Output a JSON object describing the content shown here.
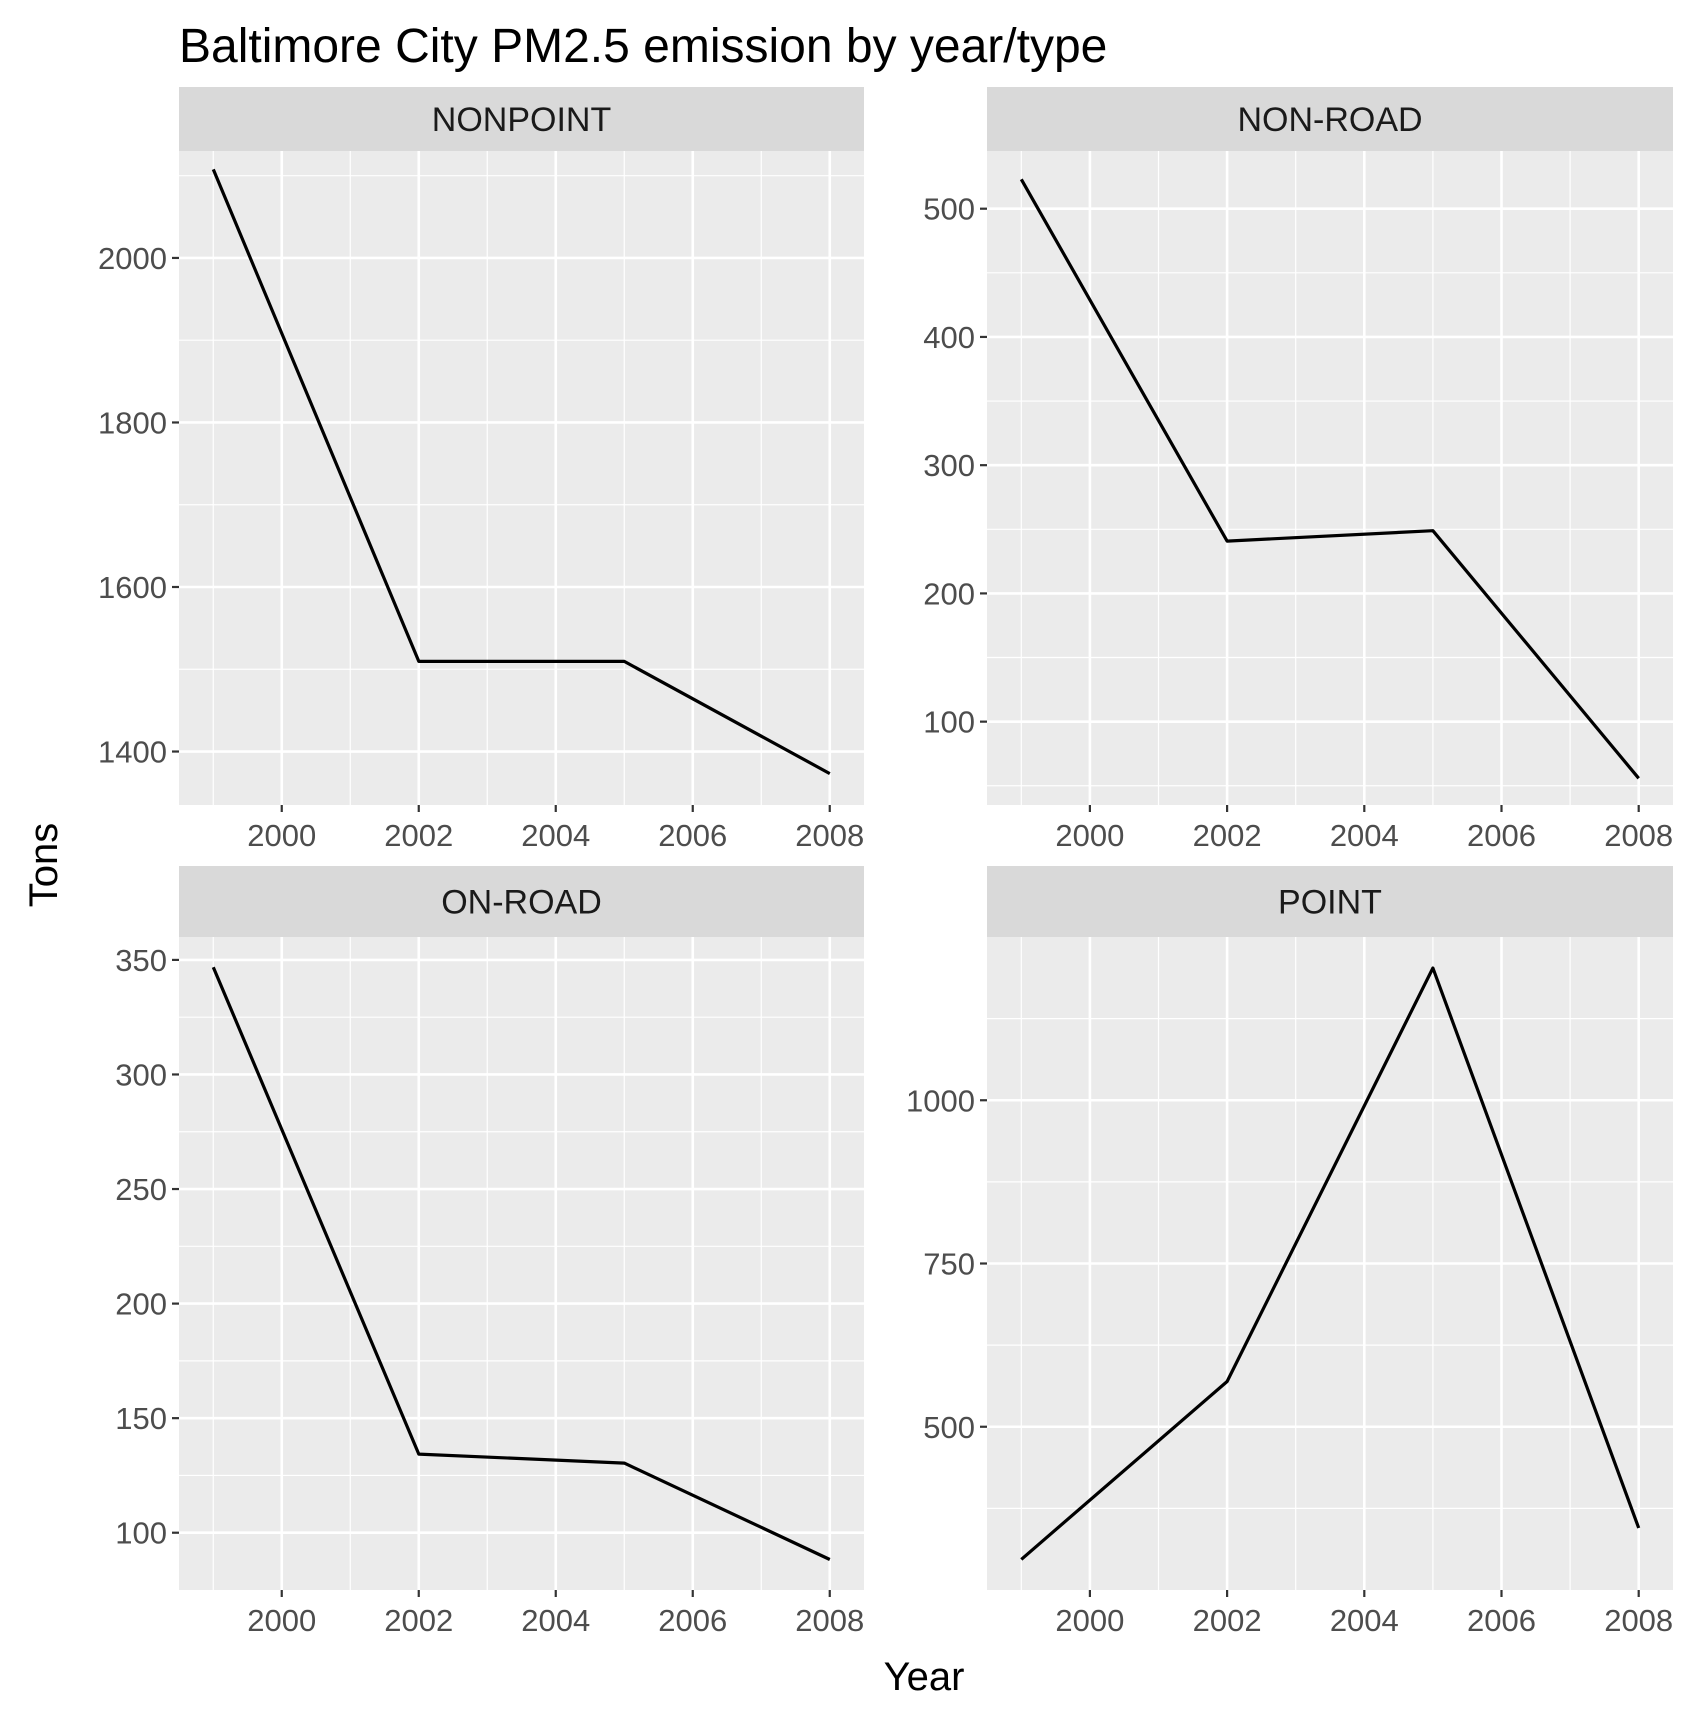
{
  "chart_data": {
    "type": "line",
    "title": "Baltimore City PM2.5 emission by year/type",
    "xlabel": "Year",
    "ylabel": "Tons",
    "layout": "facet-grid-2x2",
    "grid": true,
    "legend": "none",
    "line_color": "#000000",
    "panel_background": "#EBEBEB",
    "strip_background": "#D9D9D9",
    "x": [
      1999,
      2002,
      2005,
      2008
    ],
    "xlim": [
      1998.5,
      2008.5
    ],
    "x_ticks": [
      2000,
      2002,
      2004,
      2006,
      2008
    ],
    "facets": [
      {
        "strip": "NONPOINT",
        "values": [
          2107.6,
          1509.5,
          1509.5,
          1373.2
        ],
        "ylim": [
          1335,
          2130
        ],
        "y_ticks": [
          1400,
          1600,
          1800,
          2000
        ]
      },
      {
        "strip": "NON-ROAD",
        "values": [
          522.9,
          240.8,
          248.9,
          55.8
        ],
        "ylim": [
          35,
          545
        ],
        "y_ticks": [
          100,
          200,
          300,
          400,
          500
        ]
      },
      {
        "strip": "ON-ROAD",
        "values": [
          346.8,
          134.3,
          130.4,
          88.3
        ],
        "ylim": [
          75,
          360
        ],
        "y_ticks": [
          100,
          150,
          200,
          250,
          300,
          350
        ]
      },
      {
        "strip": "POINT",
        "values": [
          296.8,
          569.3,
          1202.5,
          344.98
        ],
        "ylim": [
          250,
          1250
        ],
        "y_ticks": [
          500,
          750,
          1000
        ]
      }
    ]
  }
}
